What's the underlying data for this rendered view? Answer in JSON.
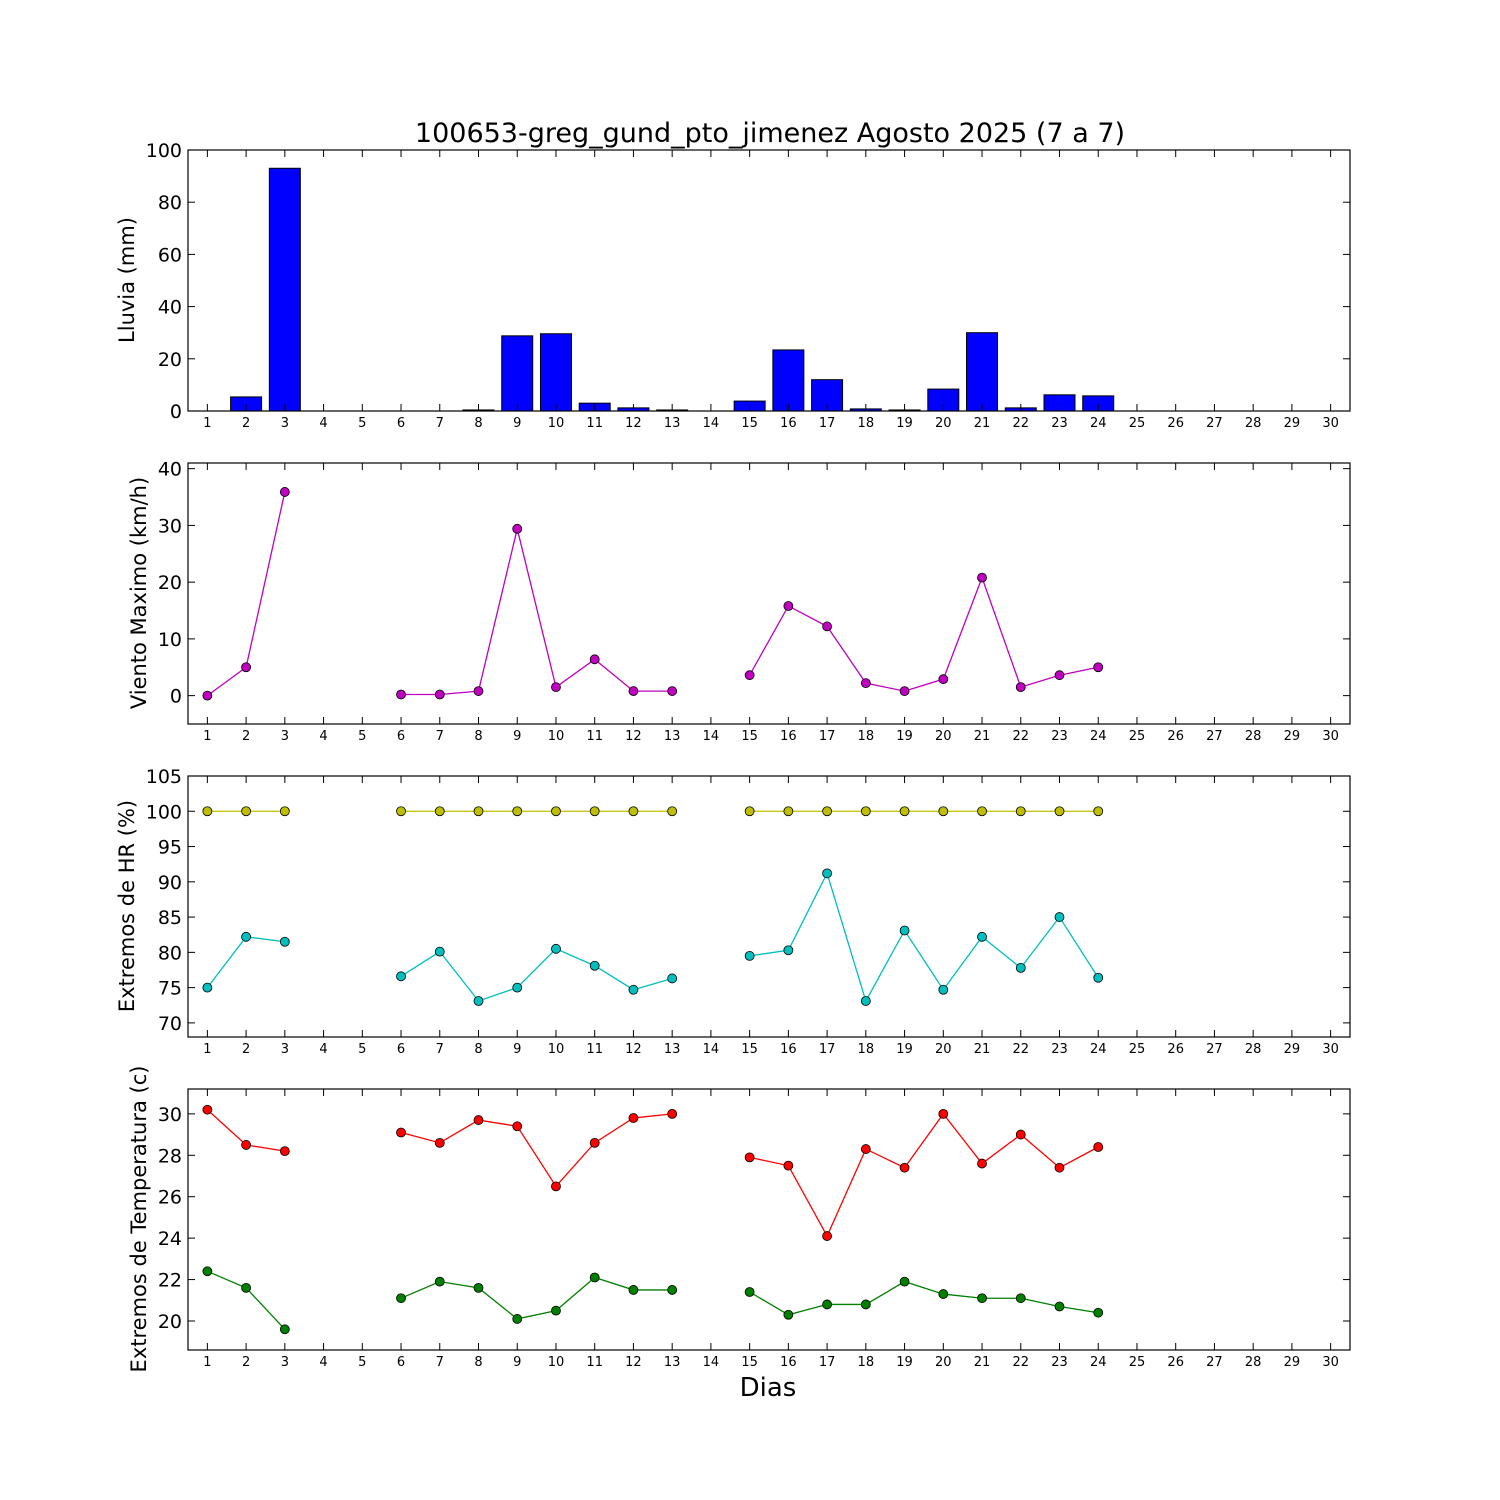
{
  "chart_data": [
    {
      "type": "bar",
      "title": "100653-greg_gund_pto_jimenez Agosto 2025  (7 a 7)",
      "ylabel": "Lluvia (mm)",
      "xlabel": "",
      "ylim": [
        0,
        100
      ],
      "yticks": [
        0,
        20,
        40,
        60,
        80,
        100
      ],
      "x": [
        1,
        2,
        3,
        4,
        5,
        6,
        7,
        8,
        9,
        10,
        11,
        12,
        13,
        14,
        15,
        16,
        17,
        18,
        19,
        20,
        21,
        22,
        23,
        24,
        25,
        26,
        27,
        28,
        29,
        30
      ],
      "xlim": [
        0.5,
        30.5
      ],
      "color": "#0000ff",
      "series": [
        {
          "values": [
            0,
            5.4,
            93.0,
            0,
            0,
            0,
            0,
            0.4,
            28.8,
            29.6,
            3.0,
            1.2,
            0.4,
            0,
            3.8,
            23.4,
            12.0,
            0.8,
            0.4,
            8.4,
            30.0,
            1.2,
            6.2,
            5.8,
            0,
            0,
            0,
            0,
            0,
            0
          ]
        }
      ]
    },
    {
      "type": "line",
      "title": "",
      "ylabel": "Viento Maximo (km/h)",
      "xlabel": "",
      "ylim": [
        -5,
        41
      ],
      "yticks": [
        0,
        10,
        20,
        30,
        40
      ],
      "x": [
        1,
        2,
        3,
        4,
        5,
        6,
        7,
        8,
        9,
        10,
        11,
        12,
        13,
        14,
        15,
        16,
        17,
        18,
        19,
        20,
        21,
        22,
        23,
        24,
        25,
        26,
        27,
        28,
        29,
        30
      ],
      "xlim": [
        0.5,
        30.5
      ],
      "series": [
        {
          "color": "#bf00bf",
          "values": [
            0,
            5.0,
            35.9,
            null,
            null,
            0.2,
            0.2,
            0.8,
            29.4,
            1.5,
            6.4,
            0.8,
            0.8,
            null,
            3.6,
            15.8,
            12.2,
            2.2,
            0.8,
            2.9,
            20.8,
            1.5,
            3.6,
            5.0,
            null,
            null,
            null,
            null,
            null,
            null
          ]
        }
      ]
    },
    {
      "type": "line",
      "title": "",
      "ylabel": "Extremos de HR (%)",
      "xlabel": "",
      "ylim": [
        68,
        105
      ],
      "yticks": [
        70,
        75,
        80,
        85,
        90,
        95,
        100,
        105
      ],
      "x": [
        1,
        2,
        3,
        4,
        5,
        6,
        7,
        8,
        9,
        10,
        11,
        12,
        13,
        14,
        15,
        16,
        17,
        18,
        19,
        20,
        21,
        22,
        23,
        24,
        25,
        26,
        27,
        28,
        29,
        30
      ],
      "xlim": [
        0.5,
        30.5
      ],
      "series": [
        {
          "color": "#bfbf00",
          "values": [
            100,
            100,
            100,
            null,
            null,
            100,
            100,
            100,
            100,
            100,
            100,
            100,
            100,
            null,
            100,
            100,
            100,
            100,
            100,
            100,
            100,
            100,
            100,
            100,
            null,
            null,
            null,
            null,
            null,
            null
          ]
        },
        {
          "color": "#00bfbf",
          "values": [
            75.0,
            82.2,
            81.5,
            null,
            null,
            76.6,
            80.1,
            73.1,
            75.0,
            80.5,
            78.1,
            74.7,
            76.3,
            null,
            79.5,
            80.3,
            91.2,
            73.1,
            83.1,
            74.7,
            82.2,
            77.8,
            85.0,
            76.4,
            null,
            null,
            null,
            null,
            null,
            null
          ]
        }
      ]
    },
    {
      "type": "line",
      "title": "",
      "ylabel": "Extremos de Temperatura (c)",
      "xlabel": "Dias",
      "ylim": [
        18.6,
        31.2
      ],
      "yticks": [
        20,
        22,
        24,
        26,
        28,
        30
      ],
      "x": [
        1,
        2,
        3,
        4,
        5,
        6,
        7,
        8,
        9,
        10,
        11,
        12,
        13,
        14,
        15,
        16,
        17,
        18,
        19,
        20,
        21,
        22,
        23,
        24,
        25,
        26,
        27,
        28,
        29,
        30
      ],
      "xlim": [
        0.5,
        30.5
      ],
      "series": [
        {
          "color": "#ff0000",
          "values": [
            30.2,
            28.5,
            28.2,
            null,
            null,
            29.1,
            28.6,
            29.7,
            29.4,
            26.5,
            28.6,
            29.8,
            30.0,
            null,
            27.9,
            27.5,
            24.1,
            28.3,
            27.4,
            30.0,
            27.6,
            29.0,
            27.4,
            28.4,
            null,
            null,
            null,
            null,
            null,
            null
          ]
        },
        {
          "color": "#007f00",
          "values": [
            22.4,
            21.6,
            19.6,
            null,
            null,
            21.1,
            21.9,
            21.6,
            20.1,
            20.5,
            22.1,
            21.5,
            21.5,
            null,
            21.4,
            20.3,
            20.8,
            20.8,
            21.9,
            21.3,
            21.1,
            21.1,
            20.7,
            20.4,
            null,
            null,
            null,
            null,
            null,
            null
          ]
        }
      ]
    }
  ]
}
